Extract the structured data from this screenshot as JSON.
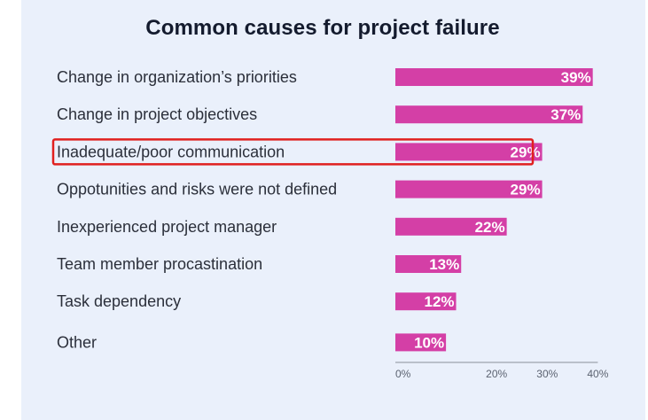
{
  "chart_data": {
    "type": "bar",
    "orientation": "horizontal",
    "title": "Common causes for project failure",
    "categories": [
      "Change in organization’s priorities",
      "Change in project objectives",
      "Inadequate/poor communication",
      "Oppotunities and risks were not defined",
      "Inexperienced project manager",
      "Team member procastination",
      "Task dependency",
      "Other"
    ],
    "values": [
      39,
      37,
      29,
      29,
      22,
      13,
      12,
      10
    ],
    "value_labels": [
      "39%",
      "37%",
      "29%",
      "29%",
      "22%",
      "13%",
      "12%",
      "10%"
    ],
    "xlim": [
      0,
      40
    ],
    "xticks": [
      0,
      20,
      30,
      40
    ],
    "xtick_labels": [
      "0%",
      "20%",
      "30%",
      "40%"
    ],
    "grid": false,
    "highlighted_category": "Inadequate/poor communication",
    "colors": {
      "bar": "#d43fa6",
      "highlight_box": "#e0201f",
      "background": "#eaf0fb",
      "title": "#141b2e",
      "label": "#2b2f3a",
      "axis": "#8a8f99"
    }
  }
}
